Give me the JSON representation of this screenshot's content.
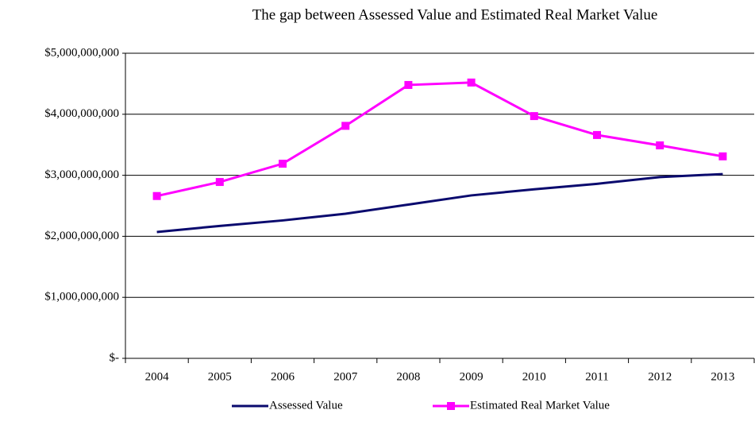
{
  "chart_data": {
    "type": "line",
    "title": "The gap between Assessed Value and Estimated Real Market Value",
    "categories": [
      "2004",
      "2005",
      "2006",
      "2007",
      "2008",
      "2009",
      "2010",
      "2011",
      "2012",
      "2013"
    ],
    "series": [
      {
        "name": "Assessed Value",
        "color": "#0a0a6e",
        "marker": "none",
        "values": [
          2070000000,
          2170000000,
          2260000000,
          2370000000,
          2520000000,
          2670000000,
          2770000000,
          2860000000,
          2970000000,
          3020000000
        ]
      },
      {
        "name": "Estimated Real Market Value",
        "color": "#ff00ff",
        "marker": "square",
        "values": [
          2660000000,
          2890000000,
          3190000000,
          3810000000,
          4480000000,
          4520000000,
          3970000000,
          3660000000,
          3490000000,
          3310000000
        ]
      }
    ],
    "ylim": [
      0,
      5000000000
    ],
    "yticks": [
      {
        "value": 0,
        "label": "$-"
      },
      {
        "value": 1000000000,
        "label": "$1,000,000,000"
      },
      {
        "value": 2000000000,
        "label": "$2,000,000,000"
      },
      {
        "value": 3000000000,
        "label": "$3,000,000,000"
      },
      {
        "value": 4000000000,
        "label": "$4,000,000,000"
      },
      {
        "value": 5000000000,
        "label": "$5,000,000,000"
      }
    ],
    "grid": true,
    "legend": "bottom"
  }
}
